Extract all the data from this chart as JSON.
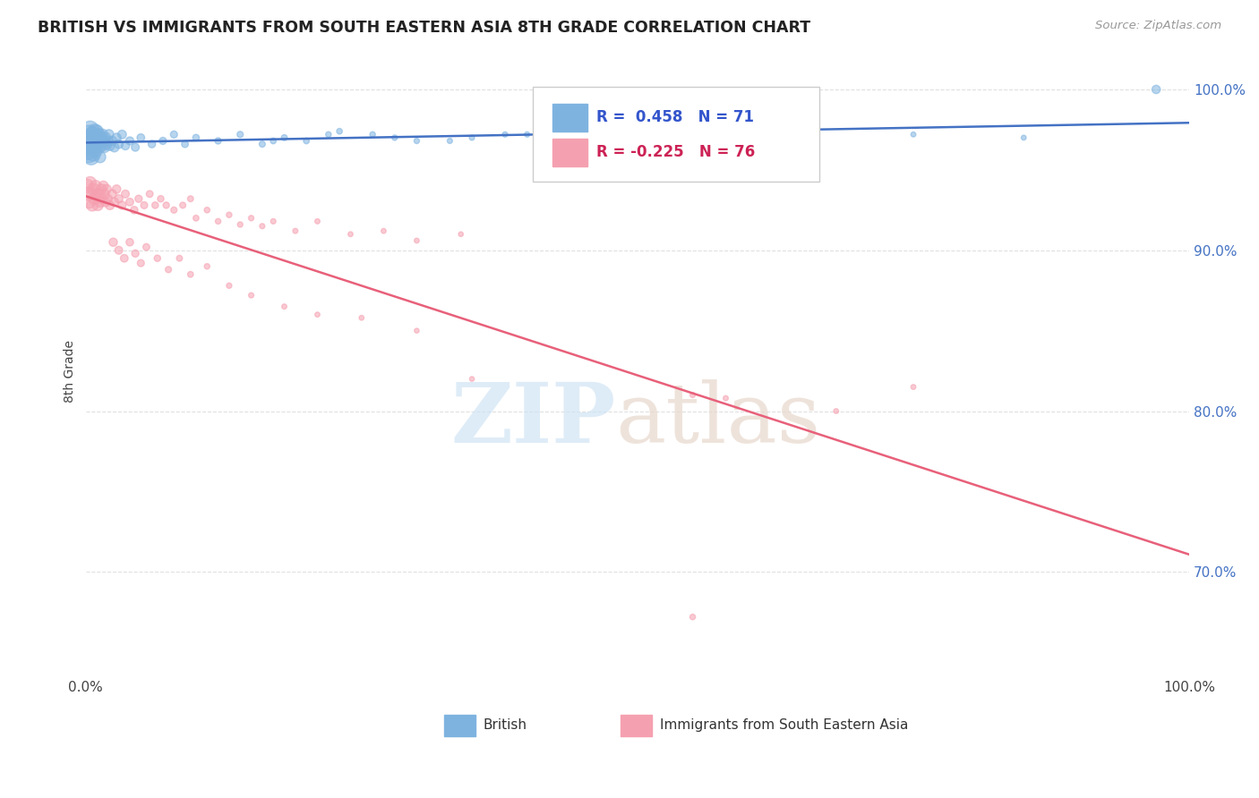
{
  "title": "BRITISH VS IMMIGRANTS FROM SOUTH EASTERN ASIA 8TH GRADE CORRELATION CHART",
  "source": "Source: ZipAtlas.com",
  "ylabel": "8th Grade",
  "ytick_labels": [
    "100.0%",
    "90.0%",
    "80.0%",
    "70.0%"
  ],
  "ytick_values": [
    1.0,
    0.9,
    0.8,
    0.7
  ],
  "legend_label1": "British",
  "legend_label2": "Immigrants from South Eastern Asia",
  "r1": 0.458,
  "n1": 71,
  "r2": -0.225,
  "n2": 76,
  "blue_color": "#7EB3E0",
  "pink_color": "#F5A0B0",
  "blue_line_color": "#4472C4",
  "pink_line_color": "#E8607A",
  "background_color": "#FFFFFF",
  "grid_color": "#DDDDDD",
  "ylim_min": 0.635,
  "ylim_max": 1.015,
  "xlim_min": 0.0,
  "xlim_max": 1.0,
  "british_x": [
    0.001,
    0.002,
    0.003,
    0.003,
    0.004,
    0.004,
    0.005,
    0.005,
    0.006,
    0.006,
    0.007,
    0.007,
    0.008,
    0.008,
    0.009,
    0.009,
    0.01,
    0.01,
    0.011,
    0.011,
    0.012,
    0.012,
    0.013,
    0.013,
    0.014,
    0.015,
    0.015,
    0.016,
    0.017,
    0.018,
    0.019,
    0.02,
    0.021,
    0.022,
    0.024,
    0.026,
    0.028,
    0.03,
    0.033,
    0.036,
    0.04,
    0.045,
    0.05,
    0.06,
    0.07,
    0.08,
    0.09,
    0.1,
    0.12,
    0.14,
    0.16,
    0.18,
    0.2,
    0.23,
    0.26,
    0.3,
    0.35,
    0.4,
    0.5,
    0.62,
    0.75,
    0.85,
    0.97,
    0.17,
    0.22,
    0.28,
    0.33,
    0.38,
    0.43,
    0.48,
    0.55
  ],
  "british_y": [
    0.963,
    0.968,
    0.972,
    0.96,
    0.975,
    0.965,
    0.97,
    0.958,
    0.965,
    0.972,
    0.968,
    0.96,
    0.974,
    0.965,
    0.97,
    0.962,
    0.968,
    0.974,
    0.966,
    0.97,
    0.972,
    0.964,
    0.968,
    0.958,
    0.97,
    0.965,
    0.972,
    0.968,
    0.964,
    0.97,
    0.966,
    0.968,
    0.972,
    0.965,
    0.968,
    0.964,
    0.97,
    0.966,
    0.972,
    0.965,
    0.968,
    0.964,
    0.97,
    0.966,
    0.968,
    0.972,
    0.966,
    0.97,
    0.968,
    0.972,
    0.966,
    0.97,
    0.968,
    0.974,
    0.972,
    0.968,
    0.97,
    0.972,
    0.974,
    0.968,
    0.972,
    0.97,
    1.0,
    0.968,
    0.972,
    0.97,
    0.968,
    0.972,
    0.968,
    0.97,
    0.966
  ],
  "british_sizes": [
    300,
    250,
    220,
    200,
    190,
    180,
    170,
    160,
    150,
    145,
    140,
    135,
    130,
    125,
    120,
    115,
    110,
    105,
    100,
    98,
    95,
    90,
    88,
    85,
    82,
    80,
    78,
    75,
    72,
    70,
    68,
    65,
    62,
    60,
    58,
    55,
    52,
    50,
    48,
    45,
    42,
    40,
    38,
    35,
    33,
    32,
    30,
    28,
    26,
    25,
    24,
    23,
    22,
    21,
    20,
    19,
    18,
    18,
    17,
    17,
    16,
    16,
    45,
    22,
    20,
    19,
    18,
    18,
    17,
    17,
    16
  ],
  "sea_x": [
    0.001,
    0.002,
    0.003,
    0.004,
    0.005,
    0.006,
    0.007,
    0.008,
    0.009,
    0.01,
    0.011,
    0.012,
    0.013,
    0.014,
    0.015,
    0.016,
    0.017,
    0.018,
    0.019,
    0.02,
    0.022,
    0.024,
    0.026,
    0.028,
    0.03,
    0.033,
    0.036,
    0.04,
    0.044,
    0.048,
    0.053,
    0.058,
    0.063,
    0.068,
    0.073,
    0.08,
    0.088,
    0.095,
    0.1,
    0.11,
    0.12,
    0.13,
    0.14,
    0.15,
    0.16,
    0.17,
    0.19,
    0.21,
    0.24,
    0.27,
    0.3,
    0.34,
    0.025,
    0.03,
    0.035,
    0.04,
    0.045,
    0.05,
    0.055,
    0.065,
    0.075,
    0.085,
    0.095,
    0.11,
    0.13,
    0.15,
    0.18,
    0.21,
    0.25,
    0.3,
    0.35,
    0.55,
    0.58,
    0.68,
    0.75,
    0.55
  ],
  "sea_y": [
    0.94,
    0.935,
    0.93,
    0.942,
    0.935,
    0.928,
    0.938,
    0.932,
    0.94,
    0.935,
    0.928,
    0.935,
    0.93,
    0.938,
    0.932,
    0.94,
    0.935,
    0.93,
    0.938,
    0.932,
    0.928,
    0.935,
    0.93,
    0.938,
    0.932,
    0.928,
    0.935,
    0.93,
    0.925,
    0.932,
    0.928,
    0.935,
    0.928,
    0.932,
    0.928,
    0.925,
    0.928,
    0.932,
    0.92,
    0.925,
    0.918,
    0.922,
    0.916,
    0.92,
    0.915,
    0.918,
    0.912,
    0.918,
    0.91,
    0.912,
    0.906,
    0.91,
    0.905,
    0.9,
    0.895,
    0.905,
    0.898,
    0.892,
    0.902,
    0.895,
    0.888,
    0.895,
    0.885,
    0.89,
    0.878,
    0.872,
    0.865,
    0.86,
    0.858,
    0.85,
    0.82,
    0.81,
    0.808,
    0.8,
    0.815,
    0.672
  ],
  "sea_sizes": [
    120,
    110,
    100,
    95,
    90,
    88,
    85,
    82,
    80,
    78,
    75,
    72,
    70,
    68,
    65,
    62,
    60,
    58,
    56,
    54,
    52,
    50,
    48,
    46,
    44,
    42,
    40,
    38,
    36,
    34,
    32,
    30,
    28,
    27,
    26,
    25,
    24,
    23,
    22,
    21,
    20,
    20,
    19,
    19,
    18,
    18,
    17,
    17,
    16,
    16,
    16,
    15,
    44,
    40,
    38,
    36,
    34,
    32,
    30,
    27,
    25,
    23,
    22,
    20,
    19,
    18,
    17,
    16,
    16,
    15,
    15,
    18,
    17,
    16,
    16,
    20
  ]
}
